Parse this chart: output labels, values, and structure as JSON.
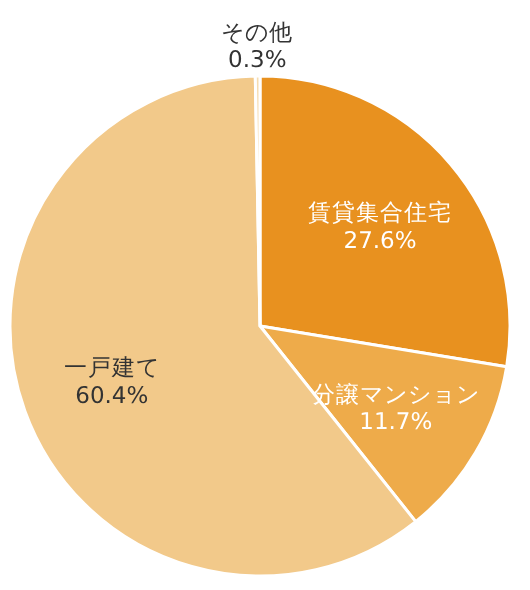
{
  "chart_data": {
    "type": "pie",
    "categories": [
      "賃貸集合住宅",
      "分譲マンション",
      "一戸建て",
      "その他"
    ],
    "values": [
      27.6,
      11.7,
      60.4,
      0.3
    ],
    "value_labels": [
      "27.6%",
      "11.7%",
      "60.4%",
      "0.3%"
    ],
    "colors": [
      "#e8911f",
      "#eeab4a",
      "#f2c98a",
      "#f6dcb0"
    ],
    "legend": false
  }
}
